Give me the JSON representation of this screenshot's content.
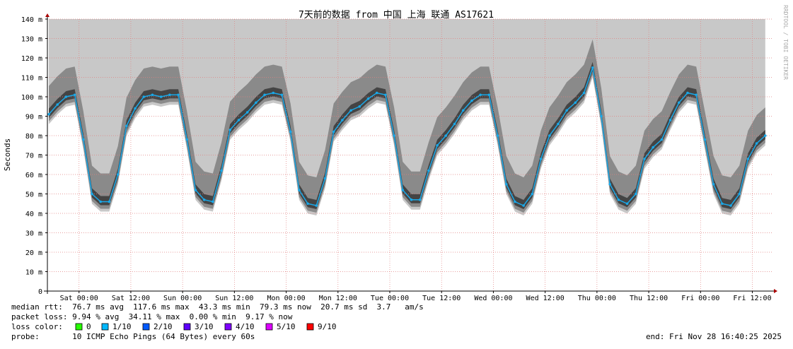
{
  "chart_data": {
    "type": "line",
    "title": "7天前的数据 from 中国 上海 联通 AS17621",
    "y_label": "Seconds",
    "watermark": "RRDTOOL / TOBI OETIKER",
    "xlim": [
      -7.33,
      160.67
    ],
    "xticks": [
      {
        "value": 0,
        "label": "Sat 00:00"
      },
      {
        "value": 12,
        "label": "Sat 12:00"
      },
      {
        "value": 24,
        "label": "Sun 00:00"
      },
      {
        "value": 36,
        "label": "Sun 12:00"
      },
      {
        "value": 48,
        "label": "Mon 00:00"
      },
      {
        "value": 60,
        "label": "Mon 12:00"
      },
      {
        "value": 72,
        "label": "Tue 00:00"
      },
      {
        "value": 84,
        "label": "Tue 12:00"
      },
      {
        "value": 96,
        "label": "Wed 00:00"
      },
      {
        "value": 108,
        "label": "Wed 12:00"
      },
      {
        "value": 120,
        "label": "Thu 00:00"
      },
      {
        "value": 132,
        "label": "Thu 12:00"
      },
      {
        "value": 144,
        "label": "Fri 00:00"
      },
      {
        "value": 156,
        "label": "Fri 12:00"
      }
    ],
    "ylim": [
      0,
      140
    ],
    "yticks": [
      0,
      {
        "value": 10,
        "label": "10 m"
      },
      {
        "value": 20,
        "label": "20 m"
      },
      {
        "value": 30,
        "label": "30 m"
      },
      {
        "value": 40,
        "label": "40 m"
      },
      {
        "value": 50,
        "label": "50 m"
      },
      {
        "value": 60,
        "label": "60 m"
      },
      {
        "value": 70,
        "label": "70 m"
      },
      {
        "value": 80,
        "label": "80 m"
      },
      {
        "value": 90,
        "label": "90 m"
      },
      {
        "value": 100,
        "label": "100 m"
      },
      {
        "value": 110,
        "label": "110 m"
      },
      {
        "value": 120,
        "label": "120 m"
      },
      {
        "value": 130,
        "label": "130 m"
      },
      {
        "value": 140,
        "label": "140 m"
      }
    ],
    "grid": true,
    "x": [
      -7,
      -5,
      -3,
      -1,
      1,
      3,
      5,
      7,
      9,
      11,
      13,
      15,
      17,
      19,
      21,
      23,
      25,
      27,
      29,
      31,
      33,
      35,
      37,
      39,
      41,
      43,
      45,
      47,
      49,
      51,
      53,
      55,
      57,
      59,
      61,
      63,
      65,
      67,
      69,
      71,
      73,
      75,
      77,
      79,
      81,
      83,
      85,
      87,
      89,
      91,
      93,
      95,
      97,
      99,
      101,
      103,
      105,
      107,
      109,
      111,
      113,
      115,
      117,
      119,
      121,
      123,
      125,
      127,
      129,
      131,
      133,
      135,
      137,
      139,
      141,
      143,
      145,
      147,
      149,
      151,
      153,
      155,
      157,
      159
    ],
    "series": [
      {
        "color": "#1aa8e8",
        "values": [
          91,
          96,
          100,
          101,
          78,
          50,
          46,
          46,
          60,
          85,
          94,
          100,
          101,
          100,
          101,
          101,
          78,
          52,
          47,
          46,
          62,
          83,
          88,
          92,
          97,
          101,
          102,
          101,
          82,
          52,
          45,
          44,
          58,
          82,
          88,
          93,
          95,
          99,
          102,
          101,
          80,
          52,
          47,
          47,
          62,
          75,
          80,
          86,
          93,
          98,
          101,
          101,
          80,
          55,
          46,
          44,
          50,
          68,
          80,
          86,
          93,
          97,
          102,
          115,
          90,
          55,
          47,
          45,
          50,
          68,
          74,
          78,
          88,
          97,
          102,
          101,
          78,
          55,
          45,
          44,
          50,
          68,
          76,
          80
        ]
      }
    ],
    "footer": {
      "median_rtt": "median rtt:  76.7 ms avg  117.6 ms max  43.3 ms min  79.3 ms now  20.7 ms sd  3.7   am/s",
      "packet_loss": "packet loss: 9.94 % avg  34.11 % max  0.00 % min  9.17 % now",
      "loss_color_label": "loss color:",
      "loss_colors": [
        {
          "label": "0",
          "color": "#26ff00"
        },
        {
          "label": "1/10",
          "color": "#00b8ff"
        },
        {
          "label": "2/10",
          "color": "#0059ff"
        },
        {
          "label": "3/10",
          "color": "#5e00ff"
        },
        {
          "label": "4/10",
          "color": "#7e00ff"
        },
        {
          "label": "5/10",
          "color": "#dd00ff"
        },
        {
          "label": "9/10",
          "color": "#ff0000"
        }
      ],
      "probe": "probe:       10 ICMP Echo Pings (64 Bytes) every 60s",
      "end": "end: Fri Nov 28 16:40:25 2025"
    }
  }
}
